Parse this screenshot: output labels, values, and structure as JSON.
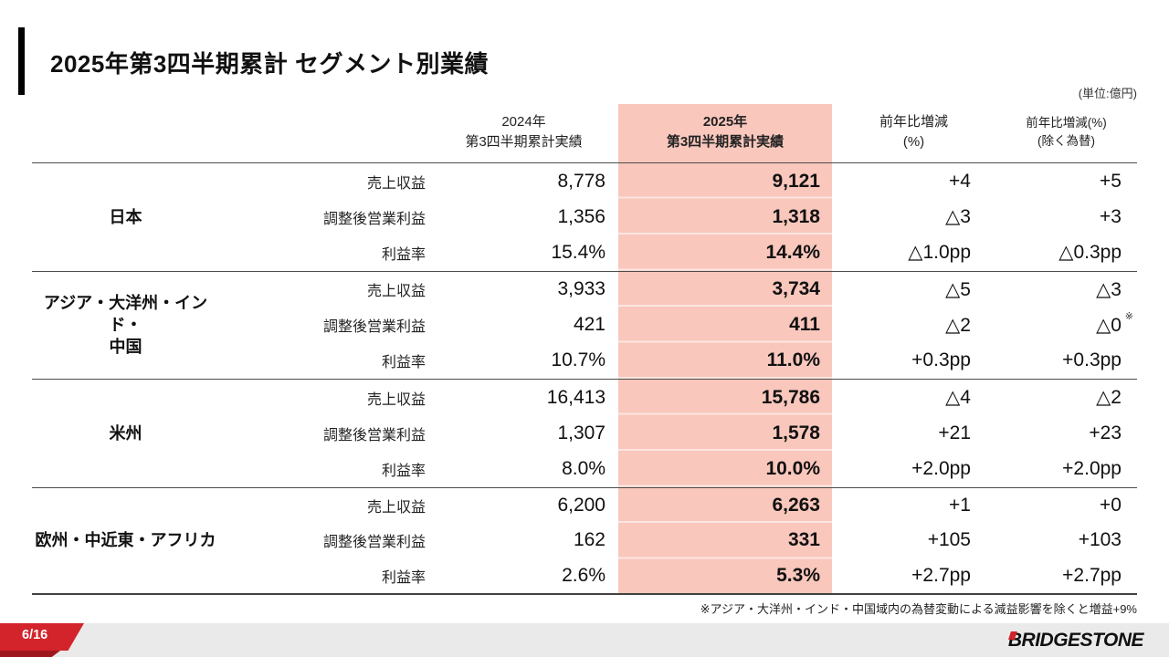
{
  "page": {
    "title": "2025年第3四半期累計 セグメント別業績",
    "unit_note": "(単位:億円)",
    "footnote": "※アジア・大洋州・インド・中国域内の為替変動による減益影響を除くと増益+9%",
    "page_number": "6/16",
    "logo_text": "BRIDGESTONE"
  },
  "colors": {
    "highlight_pink": "#F9C7BC",
    "accent_red": "#D3232B",
    "footer_gray": "#EAEAEA"
  },
  "table": {
    "headers": {
      "col_2024": "2024年\n第3四半期累計実績",
      "col_2025": "2025年\n第3四半期累計実績",
      "col_yoy": "前年比増減\n(%)",
      "col_yoy_exfx": "前年比増減(%)\n(除く為替)"
    },
    "segments": [
      {
        "label": "日本",
        "rows": [
          {
            "label": "売上収益",
            "v2024": "8,778",
            "v2025": "9,121",
            "yoy": "+4",
            "yoy_exfx": "+5"
          },
          {
            "label": "調整後営業利益",
            "v2024": "1,356",
            "v2025": "1,318",
            "yoy": "△3",
            "yoy_exfx": "+3"
          },
          {
            "label": "利益率",
            "v2024": "15.4%",
            "v2025": "14.4%",
            "yoy": "△1.0pp",
            "yoy_exfx": "△0.3pp"
          }
        ]
      },
      {
        "label": "アジア・大洋州・インド・\n中国",
        "rows": [
          {
            "label": "売上収益",
            "v2024": "3,933",
            "v2025": "3,734",
            "yoy": "△5",
            "yoy_exfx": "△3"
          },
          {
            "label": "調整後営業利益",
            "v2024": "421",
            "v2025": "411",
            "yoy": "△2",
            "yoy_exfx": "△0",
            "note_mark": "※"
          },
          {
            "label": "利益率",
            "v2024": "10.7%",
            "v2025": "11.0%",
            "yoy": "+0.3pp",
            "yoy_exfx": "+0.3pp"
          }
        ]
      },
      {
        "label": "米州",
        "rows": [
          {
            "label": "売上収益",
            "v2024": "16,413",
            "v2025": "15,786",
            "yoy": "△4",
            "yoy_exfx": "△2"
          },
          {
            "label": "調整後営業利益",
            "v2024": "1,307",
            "v2025": "1,578",
            "yoy": "+21",
            "yoy_exfx": "+23"
          },
          {
            "label": "利益率",
            "v2024": "8.0%",
            "v2025": "10.0%",
            "yoy": "+2.0pp",
            "yoy_exfx": "+2.0pp"
          }
        ]
      },
      {
        "label": "欧州・中近東・アフリカ",
        "rows": [
          {
            "label": "売上収益",
            "v2024": "6,200",
            "v2025": "6,263",
            "yoy": "+1",
            "yoy_exfx": "+0"
          },
          {
            "label": "調整後営業利益",
            "v2024": "162",
            "v2025": "331",
            "yoy": "+105",
            "yoy_exfx": "+103"
          },
          {
            "label": "利益率",
            "v2024": "2.6%",
            "v2025": "5.3%",
            "yoy": "+2.7pp",
            "yoy_exfx": "+2.7pp"
          }
        ]
      }
    ]
  }
}
